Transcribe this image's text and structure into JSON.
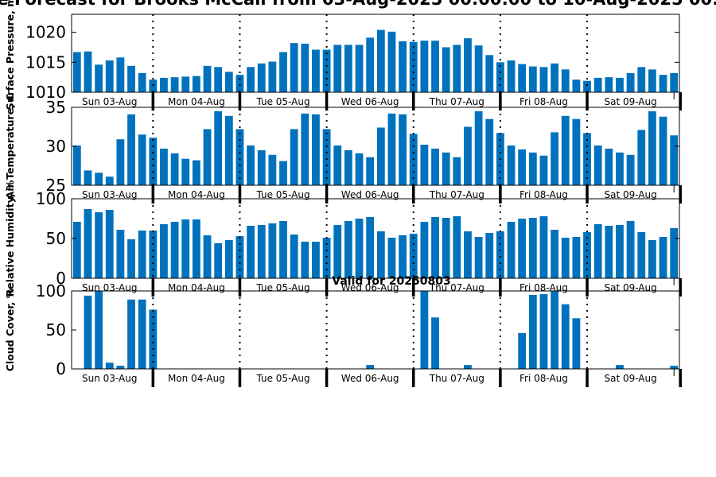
{
  "figure": {
    "title": "e Forecast for Brooks McCall from 03-Aug-2025 00:00:00 to 10-Aug-2025 00:",
    "bar_color": "#0072bd",
    "day_labels": [
      "Sun 03-Aug",
      "Mon 04-Aug",
      "Tue 05-Aug",
      "Wed 06-Aug",
      "Thu 07-Aug",
      "Fri 08-Aug",
      "Sat 09-Aug"
    ]
  },
  "chart_data": [
    {
      "type": "bar",
      "title": "",
      "xlabel": "",
      "ylabel": "Surface Pressure, m",
      "ylim": [
        1010,
        1023
      ],
      "yticks": [
        1010,
        1015,
        1020
      ],
      "values": [
        1016.7,
        1016.8,
        1014.6,
        1015.3,
        1015.8,
        1014.4,
        1013.2,
        1012.1,
        1012.4,
        1012.5,
        1012.6,
        1012.7,
        1014.4,
        1014.2,
        1013.4,
        1012.9,
        1014.2,
        1014.8,
        1015.1,
        1016.7,
        1018.2,
        1018.1,
        1017.1,
        1017.1,
        1017.9,
        1017.9,
        1017.9,
        1019.1,
        1020.4,
        1020.1,
        1018.5,
        1018.4,
        1018.6,
        1018.6,
        1017.5,
        1017.9,
        1019.0,
        1017.8,
        1016.2,
        1015.0,
        1015.3,
        1014.7,
        1014.3,
        1014.2,
        1014.8,
        1013.8,
        1012.1,
        1011.9,
        1012.4,
        1012.5,
        1012.4,
        1013.2,
        1014.2,
        1013.8,
        1012.9,
        1013.2
      ]
    },
    {
      "type": "bar",
      "title": "",
      "xlabel": "",
      "ylabel": "Air Temperature, C",
      "ylim": [
        25,
        35
      ],
      "yticks": [
        25,
        30,
        35
      ],
      "values": [
        30.1,
        26.9,
        26.6,
        26.1,
        30.9,
        34.1,
        31.5,
        31.1,
        29.7,
        29.1,
        28.4,
        28.2,
        32.2,
        34.5,
        33.9,
        32.2,
        30.1,
        29.5,
        28.9,
        28.1,
        32.2,
        34.2,
        34.1,
        32.2,
        30.1,
        29.5,
        29.1,
        28.6,
        32.4,
        34.2,
        34.1,
        31.6,
        30.2,
        29.7,
        29.2,
        28.6,
        32.5,
        34.5,
        33.5,
        31.7,
        30.1,
        29.6,
        29.2,
        28.8,
        31.8,
        33.9,
        33.5,
        31.7,
        30.1,
        29.7,
        29.2,
        28.9,
        32.1,
        34.5,
        33.8,
        31.4
      ]
    },
    {
      "type": "bar",
      "title": "",
      "xlabel": "",
      "ylabel": "Relative Humidity, %",
      "ylim": [
        0,
        100
      ],
      "yticks": [
        0,
        50,
        100
      ],
      "values": [
        71,
        87,
        83,
        86,
        61,
        49,
        60,
        60,
        68,
        71,
        74,
        74,
        54,
        44,
        48,
        53,
        66,
        67,
        69,
        72,
        55,
        46,
        46,
        51,
        67,
        72,
        75,
        77,
        59,
        51,
        54,
        56,
        71,
        77,
        76,
        78,
        59,
        52,
        57,
        59,
        71,
        75,
        76,
        78,
        61,
        51,
        52,
        58,
        68,
        66,
        67,
        72,
        58,
        48,
        52,
        63
      ]
    },
    {
      "type": "bar",
      "title": "Valid for 20250803",
      "xlabel": "",
      "ylabel": "Cloud Cover, %",
      "ylim": [
        0,
        100
      ],
      "yticks": [
        0,
        50,
        100
      ],
      "values": [
        0,
        94,
        100,
        8,
        4,
        89,
        89,
        76,
        0,
        0,
        0,
        0,
        0,
        0,
        0,
        0,
        0,
        0,
        0,
        0,
        0,
        0,
        0,
        0,
        0,
        0,
        0,
        5,
        0,
        0,
        0,
        0,
        100,
        66,
        0,
        0,
        5,
        0,
        0,
        0,
        0,
        46,
        95,
        96,
        100,
        83,
        65,
        0,
        0,
        0,
        5,
        0,
        0,
        0,
        0,
        4
      ]
    }
  ]
}
